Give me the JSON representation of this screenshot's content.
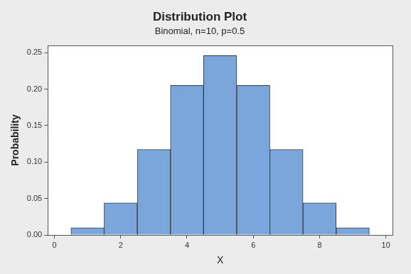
{
  "chart_data": {
    "type": "bar",
    "title": "Distribution Plot",
    "subtitle": "Binomial, n=10, p=0.5",
    "x_label": "X",
    "y_label": "Probability",
    "x": [
      1,
      2,
      3,
      4,
      5,
      6,
      7,
      8,
      9
    ],
    "values": [
      0.0098,
      0.0439,
      0.1172,
      0.2051,
      0.2461,
      0.2051,
      0.1172,
      0.0439,
      0.0098
    ],
    "color": "#7ba6dc",
    "xlim": [
      -0.2,
      10.2
    ],
    "xticks": [
      0,
      2,
      4,
      6,
      8,
      10
    ],
    "ylim": [
      0,
      0.26
    ],
    "yticks": [
      {
        "value": 0,
        "label": "0.00"
      },
      {
        "value": 0.05,
        "label": "0.05"
      },
      {
        "value": 0.1,
        "label": "0.10"
      },
      {
        "value": 0.15,
        "label": "0.15"
      },
      {
        "value": 0.2,
        "label": "0.20"
      },
      {
        "value": 0.25,
        "label": "0.25"
      }
    ],
    "grid": false
  }
}
